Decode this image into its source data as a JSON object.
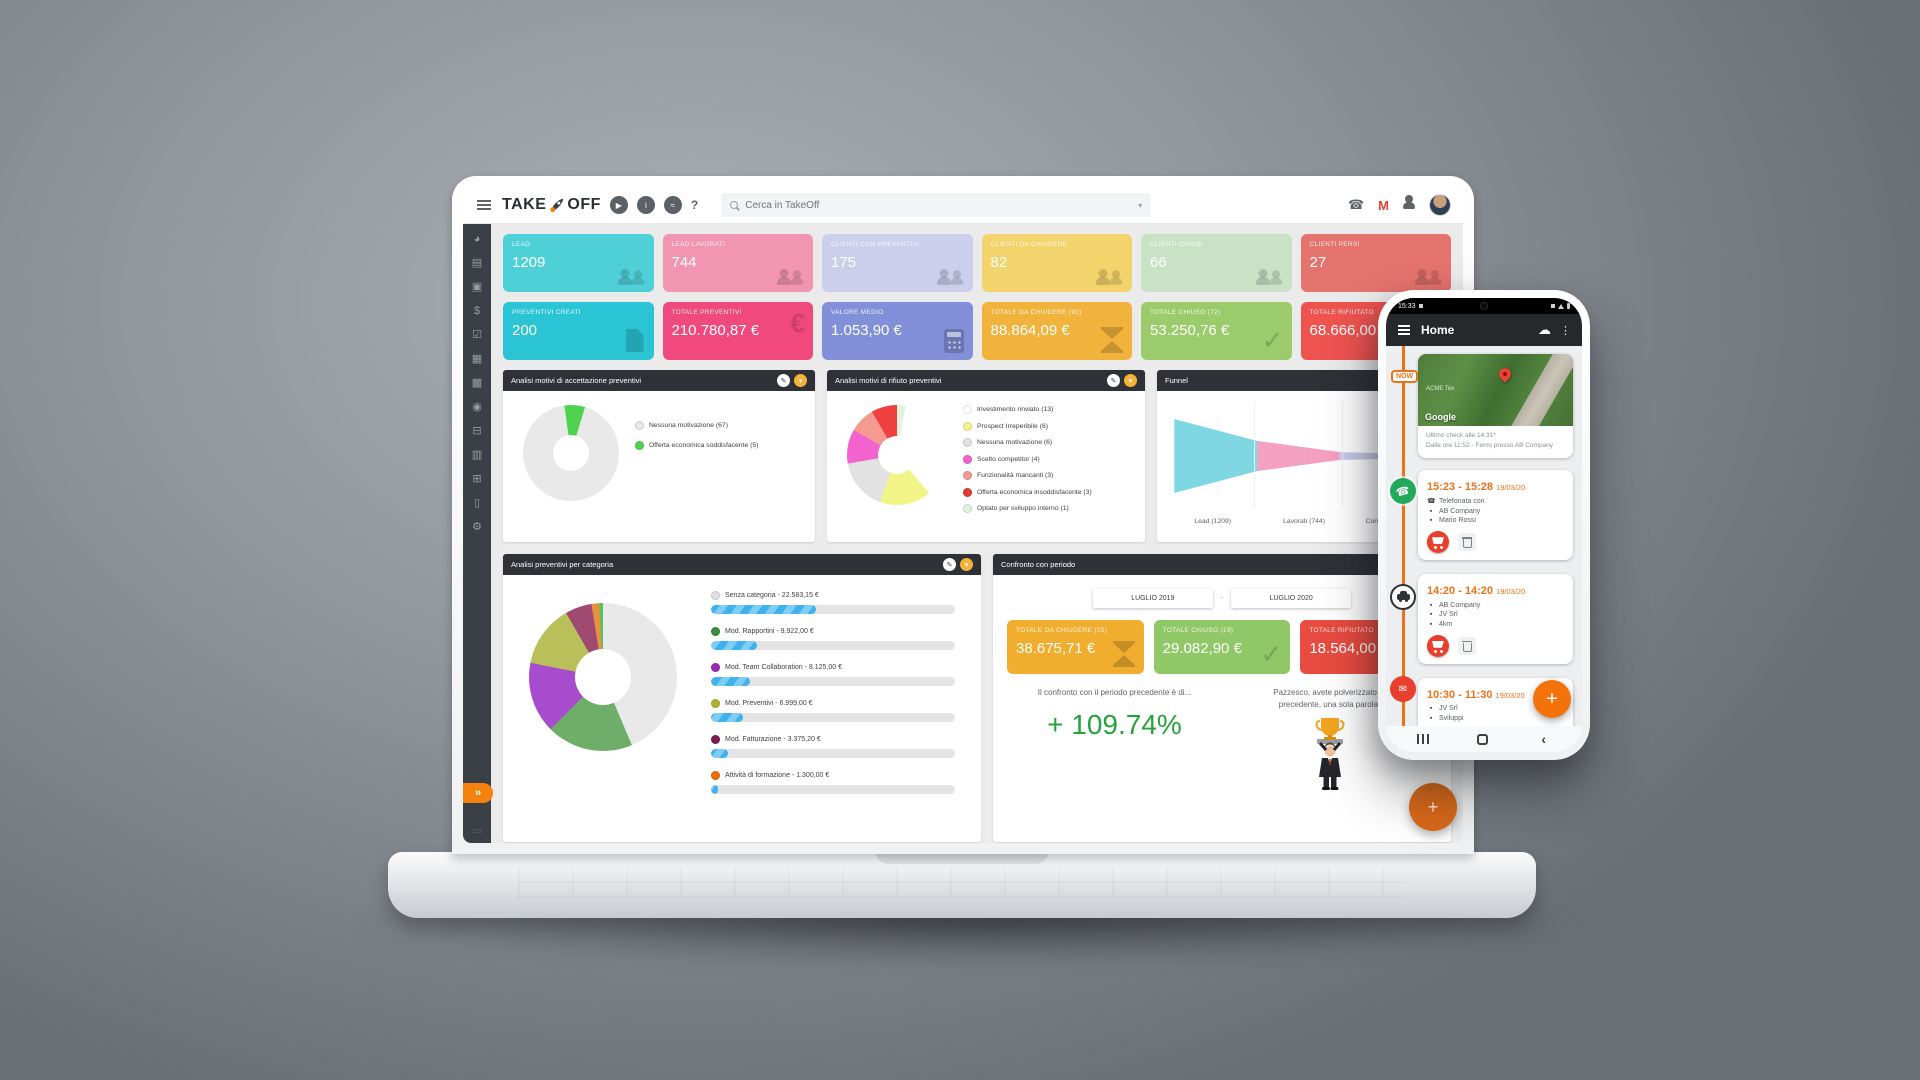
{
  "colors": {
    "brand_orange": "#f5820d",
    "timeline_orange": "#ed7117",
    "percent_green": "#27a23c",
    "panel_header": "#2e3237",
    "sidebar": "#3b4046"
  },
  "header": {
    "logo_take": "TAKE",
    "logo_off": "OFF",
    "help": "?",
    "search_placeholder": "Cerca in TakeOff",
    "gmail_letter": "M"
  },
  "sidebar": {
    "icons": [
      {
        "name": "dashboard",
        "glyph": "◕"
      },
      {
        "name": "contacts",
        "glyph": "▤"
      },
      {
        "name": "business",
        "glyph": "▣"
      },
      {
        "name": "sales",
        "glyph": "$"
      },
      {
        "name": "tasks",
        "glyph": "☑"
      },
      {
        "name": "calendar",
        "glyph": "▦"
      },
      {
        "name": "apps",
        "glyph": "▩"
      },
      {
        "name": "locations",
        "glyph": "◉"
      },
      {
        "name": "payments",
        "glyph": "⊟"
      },
      {
        "name": "documents",
        "glyph": "▥"
      },
      {
        "name": "orders",
        "glyph": "⊞"
      },
      {
        "name": "notes",
        "glyph": "▯"
      },
      {
        "name": "settings",
        "glyph": "⚙"
      }
    ],
    "expand": "»",
    "collapsed_extra": "▭"
  },
  "kpi_row1": [
    {
      "label": "LEAD",
      "value": "1209",
      "color": "#4fd0d8"
    },
    {
      "label": "LEAD LAVORATI",
      "value": "744",
      "color": "#f295b3"
    },
    {
      "label": "CLIENTI CON PREVENTIVI",
      "value": "175",
      "color": "#cbcfeb"
    },
    {
      "label": "CLIENTI DA CHIUDERE",
      "value": "82",
      "color": "#f3d36b"
    },
    {
      "label": "CLIENTI CHIUSI",
      "value": "66",
      "color": "#c9e2c6"
    },
    {
      "label": "CLIENTI PERSI",
      "value": "27",
      "color": "#e5736e"
    }
  ],
  "kpi_row2": [
    {
      "label": "PREVENTIVI CREATI",
      "value": "200",
      "color": "#2ac4d4"
    },
    {
      "label": "TOTALE PREVENTIVI",
      "value": "210.780,87 €",
      "color": "#f0497e"
    },
    {
      "label": "VALORE MEDIO",
      "value": "1.053,90 €",
      "color": "#8290da"
    },
    {
      "label": "TOTALE DA CHIUDERE (92)",
      "value": "88.864,09 €",
      "color": "#f2b33d"
    },
    {
      "label": "TOTALE CHIUSO (72)",
      "value": "53.250,76 €",
      "color": "#9ccb6b"
    },
    {
      "label": "TOTALE RIFIUTATO",
      "value": "68.666,00 €",
      "color": "#ee5350"
    }
  ],
  "panels": {
    "acceptance": {
      "title": "Analisi motivi di accettazione preventivi",
      "legend": [
        {
          "label": "Nessuna motivazione (67)",
          "color": "#e9e9e9"
        },
        {
          "label": "Offerta economica soddisfacente (5)",
          "color": "#4fd34f"
        }
      ]
    },
    "rejection": {
      "title": "Analisi motivi di rifiuto preventivi",
      "legend": [
        {
          "label": "Investimento rinviato (13)",
          "color": "#ffffff"
        },
        {
          "label": "Prospect Irreperibile (6)",
          "color": "#f2f488"
        },
        {
          "label": "Nessuna motivazione (6)",
          "color": "#e2e2e2"
        },
        {
          "label": "Scelto competitor (4)",
          "color": "#f263cf"
        },
        {
          "label": "Funzionalità mancanti (3)",
          "color": "#f49a90"
        },
        {
          "label": "Offerta economica insoddisfacente (3)",
          "color": "#e53935"
        },
        {
          "label": "Optato per sviluppo interno (1)",
          "color": "#dff3df"
        }
      ]
    },
    "funnel": {
      "title": "Funnel",
      "labels": [
        "Lead (1209)",
        "Lavorati (744)",
        "Con preventivi(175)"
      ]
    },
    "categories": {
      "title": "Analisi preventivi per categoria",
      "items": [
        {
          "label": "Senza categoria - 22.583,15 €",
          "color": "#e0e0e0",
          "bar": "43%"
        },
        {
          "label": "Mod. Rapportini - 9.922,00 €",
          "color": "#388e3c",
          "bar": "19%"
        },
        {
          "label": "Mod. Team Collaboration - 8.125,00 €",
          "color": "#9c27b0",
          "bar": "16%"
        },
        {
          "label": "Mod. Preventivi - 6.999,00 €",
          "color": "#afb42b",
          "bar": "13%"
        },
        {
          "label": "Mod. Fatturazione - 3.375,20 €",
          "color": "#7b1f4e",
          "bar": "7%"
        },
        {
          "label": "Attività di formazione - 1.300,00 €",
          "color": "#ef6c00",
          "bar": "3%"
        }
      ]
    },
    "comparison": {
      "title": "Confronto con periodo",
      "periods": [
        "LUGLIO 2019",
        "LUGLIO 2020"
      ],
      "separator": "-",
      "cards": [
        {
          "label": "TOTALE DA CHIUDERE (25)",
          "value": "38.675,71 €",
          "color": "#f0ad2e"
        },
        {
          "label": "TOTALE CHIUSO (19)",
          "value": "29.082,90 €",
          "color": "#90c767"
        },
        {
          "label": "TOTALE RIFIUTATO",
          "value": "18.564,00 €",
          "color": "#e84b40"
        }
      ],
      "left_caption": "Il confronto con il periodo precedente è di...",
      "percent": "+ 109.74%",
      "right_caption1": "Pazzesco, avete polverizzato i r",
      "right_caption2": "precedente, una sola parola:"
    }
  },
  "fab": "+",
  "phone": {
    "status_time": "15:33",
    "app_title": "Home",
    "now": "NOW",
    "map": {
      "brand": "Google",
      "label": "ACME Tex",
      "caption1": "Ultimo check alle 14:31*",
      "caption2": "Dalle ore 11:52 - Fermi presso AB Company"
    },
    "events": [
      {
        "time": "15:23 - 15:28",
        "date": "19/03/20",
        "lines": [
          "Telefonata con",
          "AB Company",
          "Mario Rossi"
        ]
      },
      {
        "time": "14:20 - 14:20",
        "date": "19/03/20",
        "lines": [
          "AB Company",
          "JV Srl",
          "4km"
        ]
      },
      {
        "time": "10:30 - 11:30",
        "date": "19/03/20",
        "lines": [
          "JV Srl",
          "Sviluppi"
        ]
      }
    ],
    "fab": "+"
  },
  "chart_data": [
    {
      "type": "pie",
      "title": "Analisi motivi di accettazione preventivi",
      "labels": [
        "Nessuna motivazione",
        "Offerta economica soddisfacente"
      ],
      "values": [
        67,
        5
      ],
      "colors": [
        "#e9e9e9",
        "#4fd34f"
      ],
      "legend_position": "right"
    },
    {
      "type": "pie",
      "title": "Analisi motivi di rifiuto preventivi",
      "labels": [
        "Investimento rinviato",
        "Prospect Irreperibile",
        "Nessuna motivazione",
        "Scelto competitor",
        "Funzionalità mancanti",
        "Offerta economica insoddisfacente",
        "Optato per sviluppo interno"
      ],
      "values": [
        13,
        6,
        6,
        4,
        3,
        3,
        1
      ],
      "colors": [
        "#ffffff",
        "#f2f488",
        "#e2e2e2",
        "#f263cf",
        "#f49a90",
        "#e53935",
        "#dff3df"
      ],
      "legend_position": "right"
    },
    {
      "type": "funnel",
      "title": "Funnel",
      "labels": [
        "Lead",
        "Lavorati",
        "Con preventivi"
      ],
      "values": [
        1209,
        744,
        175
      ],
      "colors": [
        "#7ed7e3",
        "#f4a0c0",
        "#c5cae9"
      ]
    },
    {
      "type": "pie",
      "title": "Analisi preventivi per categoria",
      "labels": [
        "Senza categoria",
        "Mod. Rapportini",
        "Mod. Team Collaboration",
        "Mod. Preventivi",
        "Mod. Fatturazione",
        "Attività di formazione"
      ],
      "values": [
        22583.15,
        9922.0,
        8125.0,
        6999.0,
        3375.2,
        1300.0
      ],
      "colors": [
        "#e9e9e9",
        "#6fae69",
        "#a64ccd",
        "#b9c05a",
        "#a04a71",
        "#e8903f"
      ],
      "legend_position": "right"
    }
  ]
}
